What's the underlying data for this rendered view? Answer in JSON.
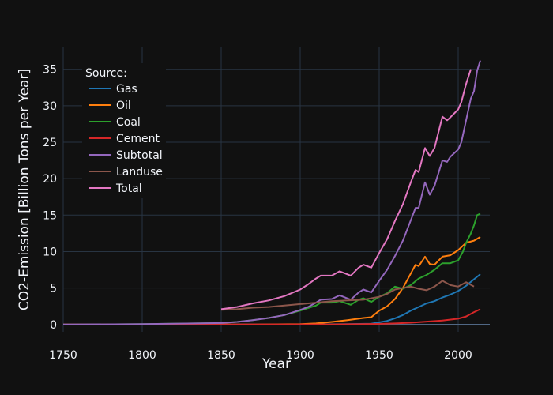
{
  "chart_data": {
    "type": "line",
    "xlabel": "Year",
    "ylabel": "CO2-Emission [Billion Tons per Year]",
    "xlim": [
      1750,
      2020
    ],
    "ylim": [
      -1,
      38
    ],
    "x_ticks": [
      1750,
      1800,
      1850,
      1900,
      1950,
      2000
    ],
    "y_ticks": [
      0,
      5,
      10,
      15,
      20,
      25,
      30,
      35
    ],
    "grid": true,
    "legend": {
      "title": "Source:",
      "placement": "top-left"
    },
    "series": [
      {
        "name": "Gas",
        "color": "#1f77b4",
        "x": [
          1750,
          1850,
          1900,
          1930,
          1945,
          1950,
          1955,
          1960,
          1965,
          1970,
          1975,
          1980,
          1985,
          1990,
          1995,
          2000,
          2005,
          2010,
          2014
        ],
        "y": [
          0,
          0,
          0.01,
          0.05,
          0.12,
          0.3,
          0.5,
          0.85,
          1.3,
          1.9,
          2.4,
          2.9,
          3.2,
          3.7,
          4.1,
          4.6,
          5.3,
          6.2,
          6.9
        ]
      },
      {
        "name": "Oil",
        "color": "#ff7f0e",
        "x": [
          1750,
          1870,
          1900,
          1910,
          1920,
          1930,
          1940,
          1945,
          1950,
          1955,
          1960,
          1965,
          1970,
          1973,
          1975,
          1979,
          1982,
          1985,
          1990,
          1995,
          2000,
          2005,
          2010,
          2014
        ],
        "y": [
          0,
          0,
          0.05,
          0.15,
          0.35,
          0.6,
          0.9,
          1.0,
          1.9,
          2.5,
          3.5,
          5.0,
          7.0,
          8.2,
          8.0,
          9.3,
          8.3,
          8.2,
          9.3,
          9.5,
          10.2,
          11.2,
          11.5,
          12.0
        ]
      },
      {
        "name": "Coal",
        "color": "#2ca02c",
        "x": [
          1750,
          1800,
          1850,
          1860,
          1870,
          1880,
          1890,
          1900,
          1910,
          1913,
          1920,
          1925,
          1932,
          1937,
          1940,
          1945,
          1950,
          1955,
          1960,
          1965,
          1970,
          1975,
          1980,
          1985,
          1990,
          1995,
          2000,
          2003,
          2005,
          2008,
          2010,
          2012,
          2014
        ],
        "y": [
          0,
          0.05,
          0.2,
          0.35,
          0.6,
          0.9,
          1.3,
          1.9,
          2.6,
          3.0,
          3.0,
          3.2,
          2.7,
          3.4,
          3.6,
          3.1,
          3.8,
          4.3,
          5.2,
          4.9,
          5.4,
          6.3,
          6.8,
          7.5,
          8.4,
          8.4,
          8.8,
          10.0,
          11.2,
          12.5,
          13.6,
          15.0,
          15.2
        ]
      },
      {
        "name": "Cement",
        "color": "#d62728",
        "x": [
          1750,
          1920,
          1950,
          1960,
          1970,
          1980,
          1990,
          2000,
          2005,
          2010,
          2014
        ],
        "y": [
          0,
          0.02,
          0.08,
          0.15,
          0.25,
          0.4,
          0.55,
          0.8,
          1.1,
          1.7,
          2.1
        ]
      },
      {
        "name": "Subtotal",
        "color": "#9467bd",
        "x": [
          1750,
          1800,
          1850,
          1860,
          1870,
          1880,
          1890,
          1900,
          1905,
          1910,
          1913,
          1920,
          1925,
          1932,
          1937,
          1940,
          1945,
          1950,
          1955,
          1960,
          1965,
          1970,
          1973,
          1975,
          1979,
          1982,
          1985,
          1990,
          1993,
          1995,
          2000,
          2002,
          2005,
          2008,
          2010,
          2012,
          2014
        ],
        "y": [
          0,
          0.05,
          0.2,
          0.35,
          0.6,
          0.9,
          1.3,
          2.0,
          2.4,
          3.0,
          3.4,
          3.5,
          4.0,
          3.4,
          4.4,
          4.8,
          4.4,
          6.0,
          7.5,
          9.4,
          11.5,
          14.3,
          16.0,
          16.0,
          19.5,
          17.8,
          19.0,
          22.5,
          22.3,
          23.0,
          24.0,
          25.0,
          28.0,
          31.0,
          32.0,
          34.8,
          36.2
        ]
      },
      {
        "name": "Landuse",
        "color": "#8c564b",
        "x": [
          1850,
          1860,
          1870,
          1880,
          1890,
          1900,
          1910,
          1920,
          1930,
          1940,
          1950,
          1955,
          1960,
          1965,
          1970,
          1975,
          1980,
          1985,
          1990,
          1995,
          2000,
          2005,
          2010
        ],
        "y": [
          2.0,
          2.1,
          2.3,
          2.4,
          2.6,
          2.8,
          3.0,
          3.2,
          3.3,
          3.4,
          3.8,
          4.2,
          4.8,
          5.0,
          5.2,
          4.9,
          4.7,
          5.2,
          6.0,
          5.4,
          5.2,
          5.8,
          5.2
        ]
      },
      {
        "name": "Total",
        "color": "#e377c2",
        "x": [
          1850,
          1860,
          1870,
          1880,
          1890,
          1900,
          1905,
          1910,
          1913,
          1920,
          1925,
          1932,
          1937,
          1940,
          1945,
          1950,
          1955,
          1960,
          1965,
          1970,
          1973,
          1975,
          1979,
          1982,
          1985,
          1990,
          1993,
          1995,
          2000,
          2002,
          2005,
          2008
        ],
        "y": [
          2.1,
          2.4,
          2.9,
          3.3,
          3.9,
          4.8,
          5.5,
          6.3,
          6.7,
          6.7,
          7.3,
          6.7,
          7.8,
          8.2,
          7.8,
          9.8,
          11.7,
          14.2,
          16.5,
          19.5,
          21.2,
          20.9,
          24.2,
          23.1,
          24.2,
          28.5,
          28.0,
          28.4,
          29.5,
          30.5,
          33.0,
          35.0
        ]
      }
    ]
  }
}
